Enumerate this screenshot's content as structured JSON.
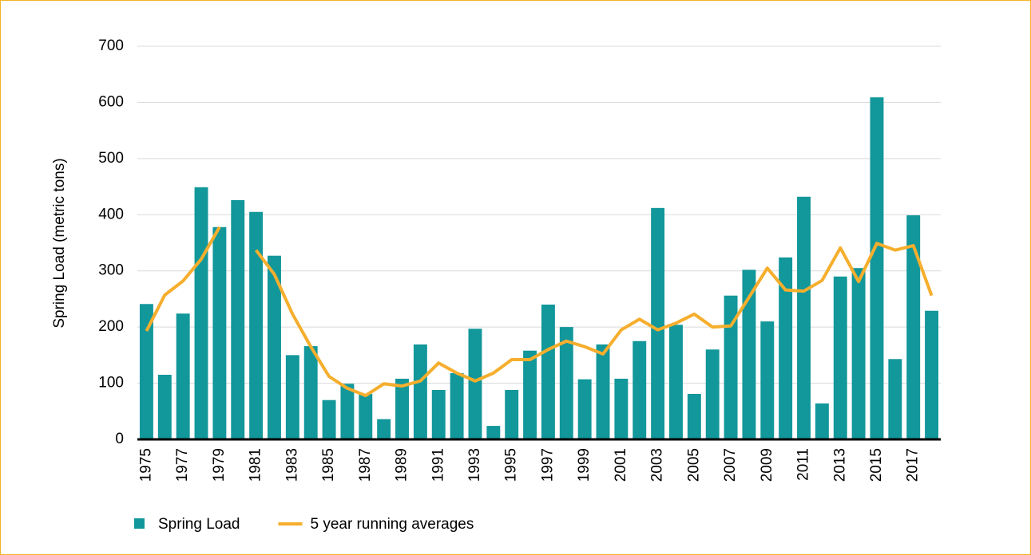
{
  "chart_data": {
    "type": "bar-line",
    "y_label": "Spring Load (metric tons)",
    "categories": [
      "1975",
      null,
      "1977",
      null,
      "1979",
      null,
      "1981",
      null,
      "1983",
      null,
      "1985",
      null,
      "1987",
      null,
      "1989",
      null,
      "1991",
      null,
      "1993",
      null,
      "1995",
      null,
      "1997",
      null,
      "1999",
      null,
      "2001",
      null,
      "2003",
      null,
      "2005",
      null,
      "2007",
      null,
      "2009",
      null,
      "2011",
      null,
      "2013",
      null,
      "2015",
      null,
      "2017",
      null
    ],
    "series": [
      {
        "name": "Spring Load",
        "type": "bar",
        "color": "#12979b",
        "values": [
          241,
          115,
          224,
          449,
          378,
          426,
          405,
          327,
          150,
          166,
          70,
          99,
          81,
          36,
          108,
          169,
          88,
          118,
          197,
          24,
          88,
          158,
          240,
          200,
          107,
          169,
          108,
          175,
          412,
          204,
          81,
          160,
          256,
          302,
          210,
          324,
          432,
          64,
          290,
          305,
          609,
          143,
          399,
          229
        ]
      },
      {
        "name": "5 year running averages",
        "type": "line",
        "color": "#f6ae2d",
        "values": [
          193,
          257,
          282,
          321,
          378,
          null,
          337,
          294,
          223,
          165,
          112,
          91,
          78,
          99,
          95,
          104,
          136,
          118,
          104,
          118,
          142,
          142,
          160,
          175,
          165,
          152,
          195,
          214,
          195,
          207,
          223,
          200,
          202,
          253,
          305,
          266,
          264,
          283,
          341,
          281,
          349,
          337,
          345,
          256
        ]
      }
    ],
    "ylim": [
      0,
      700
    ],
    "yticks": [
      0,
      100,
      200,
      300,
      400,
      500,
      600,
      700
    ],
    "grid": true,
    "legend": "bottom-left"
  }
}
